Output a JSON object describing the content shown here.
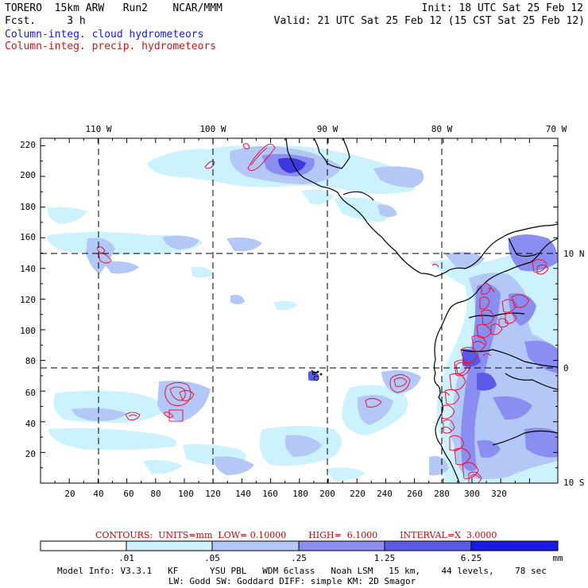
{
  "header": {
    "model_line": "TORERO  15km ARW   Run2    NCAR/MMM",
    "forecast_line": "Fcst.     3 h",
    "init_line": "Init: 18 UTC Sat 25 Feb 12",
    "valid_line": "Valid: 21 UTC Sat 25 Feb 12 (15 CST Sat 25 Feb 12)",
    "cloud_legend": "Column-integ. cloud hydrometeors",
    "precip_legend": "Column-integ. precip. hydrometeors"
  },
  "colors": {
    "cloud_text": "#1a1adc",
    "precip_text": "#dd1111",
    "precip_contour": "#e8143c",
    "shade_0": "#ffffff",
    "shade_1": "#ccf2ff",
    "shade_2": "#b4c8f8",
    "shade_3": "#8a8ef0",
    "shade_4": "#5a5ae6",
    "shade_5": "#1a1ae6"
  },
  "top_axis_labels": [
    "110 W",
    "100 W",
    "90 W",
    "80 W",
    "70 W"
  ],
  "right_axis_labels": [
    "10 N",
    "0",
    "10 S"
  ],
  "x_tick_labels": [
    "20",
    "40",
    "60",
    "80",
    "100",
    "120",
    "140",
    "160",
    "180",
    "200",
    "220",
    "240",
    "260",
    "280",
    "300",
    "320"
  ],
  "y_tick_labels": [
    "20",
    "40",
    "60",
    "80",
    "100",
    "120",
    "140",
    "160",
    "180",
    "200",
    "220"
  ],
  "contours_caption": "CONTOURS:  UNITS=mm  LOW= 0.10000        HIGH=  6.1000        INTERVAL=X  3.0000",
  "colorbar": {
    "labels": [
      ".01",
      ".05",
      ".25",
      "1.25",
      "6.25"
    ],
    "unit": "mm"
  },
  "footer": {
    "line1": "Model Info: V3.3.1   KF      YSU PBL   WDM 6class   Noah LSM   15 km,    44 levels,    78 sec",
    "line2": "LW: Godd SW: Goddard DIFF: simple KM: 2D Smagor"
  }
}
